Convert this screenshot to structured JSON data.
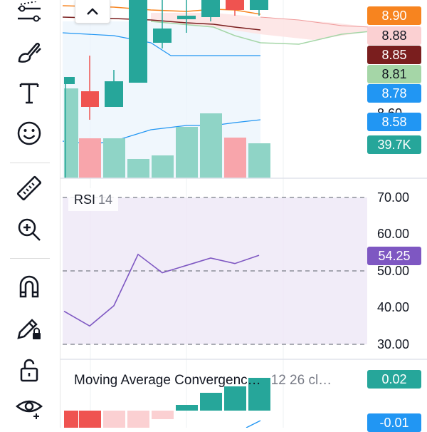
{
  "toolbar": {
    "tools": [
      {
        "name": "trend-line-tool-icon"
      },
      {
        "name": "brush-tool-icon"
      },
      {
        "name": "text-tool-icon"
      },
      {
        "name": "emoji-tool-icon"
      },
      {
        "name": "ruler-tool-icon"
      },
      {
        "name": "zoom-in-tool-icon"
      },
      {
        "name": "magnet-tool-icon"
      },
      {
        "name": "lock-drawing-tool-icon"
      },
      {
        "name": "unlock-tool-icon"
      },
      {
        "name": "visibility-tool-icon"
      }
    ]
  },
  "price_tags": [
    {
      "label": "8.90",
      "bg": "#f7841f",
      "fg": "#ffffff"
    },
    {
      "label": "8.88",
      "bg": "#fbd0d2",
      "fg": "#131722"
    },
    {
      "label": "8.85",
      "bg": "#7a1e1e",
      "fg": "#ffffff"
    },
    {
      "label": "8.81",
      "bg": "#a5d6a7",
      "fg": "#131722"
    },
    {
      "label": "8.78",
      "bg": "#2196f3",
      "fg": "#ffffff"
    },
    {
      "label": "8.58",
      "bg": "#2196f3",
      "fg": "#ffffff"
    },
    {
      "label": "39.7K",
      "bg": "#26a69a",
      "fg": "#ffffff"
    }
  ],
  "price_partial_label": "8.60",
  "rsi": {
    "title": "RSI",
    "param": "14",
    "current_value": "54.25",
    "axis_labels": [
      "70.00",
      "60.00",
      "50.00",
      "40.00",
      "30.00"
    ],
    "accent": "#7e57c2",
    "values": [
      39,
      35,
      40.5,
      54.5,
      49.5,
      51.5,
      53.5,
      52,
      54.25
    ]
  },
  "macd": {
    "title": "Moving Average Convergenc…",
    "param": "12 26 cl…",
    "tag_top": "0.02",
    "tag_bottom": "-0.01"
  },
  "colors": {
    "up": "#26a69a",
    "down": "#ef5350",
    "up_volume": "#8fd4c6",
    "down_volume": "#f8a5ab"
  }
}
